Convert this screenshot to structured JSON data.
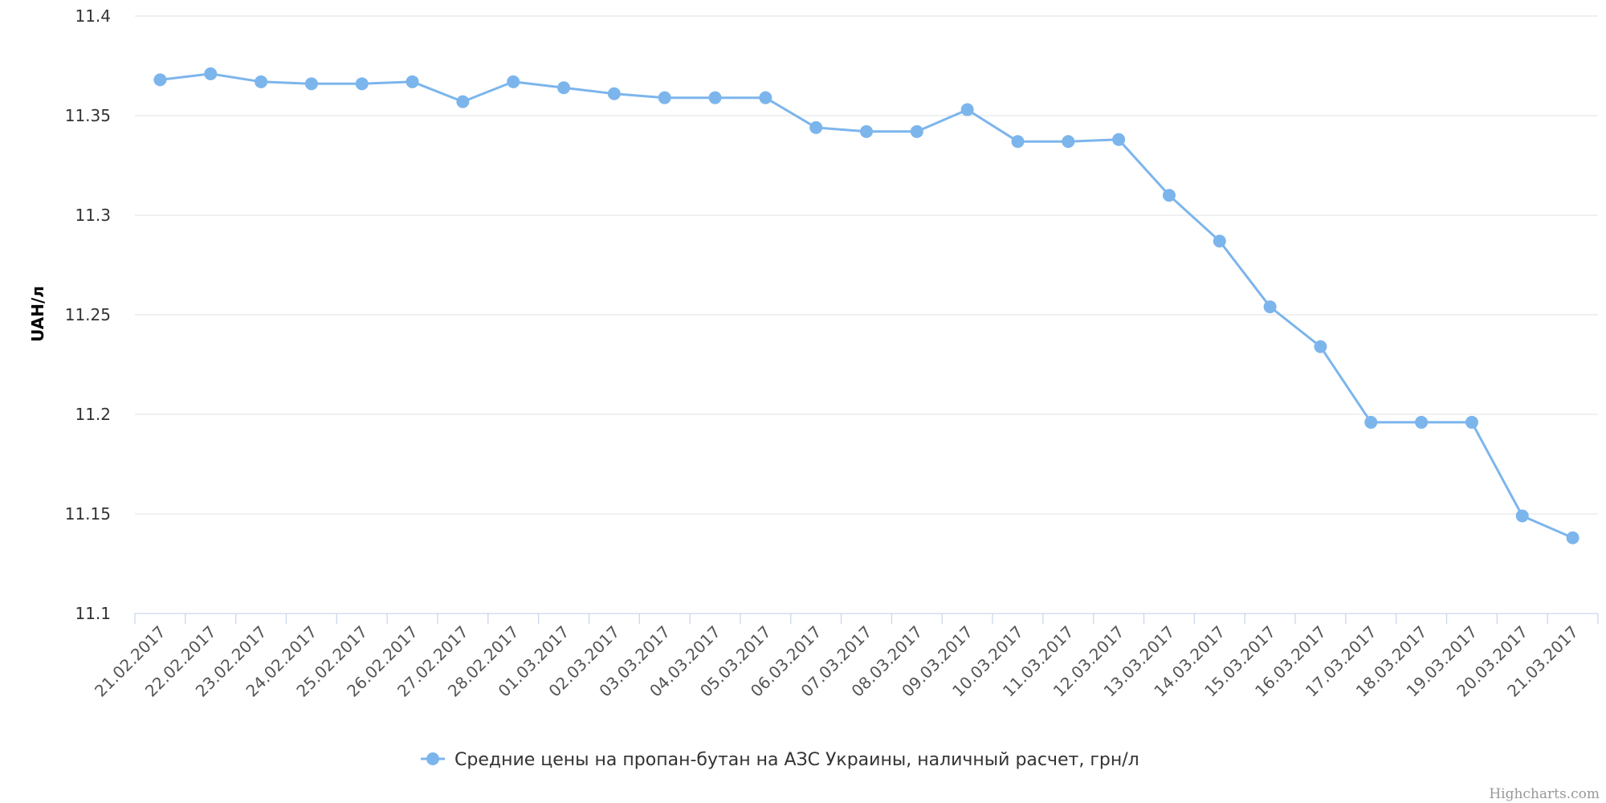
{
  "chart_data": {
    "type": "line",
    "title": "",
    "xlabel": "",
    "ylabel": "UAH/л",
    "ylim": [
      11.1,
      11.4
    ],
    "y_ticks": [
      "11.1",
      "11.15",
      "11.2",
      "11.25",
      "11.3",
      "11.35",
      "11.4"
    ],
    "y_tick_values": [
      11.1,
      11.15,
      11.2,
      11.25,
      11.3,
      11.35,
      11.4
    ],
    "grid": true,
    "legend_position": "bottom-center",
    "categories": [
      "21.02.2017",
      "22.02.2017",
      "23.02.2017",
      "24.02.2017",
      "25.02.2017",
      "26.02.2017",
      "27.02.2017",
      "28.02.2017",
      "01.03.2017",
      "02.03.2017",
      "03.03.2017",
      "04.03.2017",
      "05.03.2017",
      "06.03.2017",
      "07.03.2017",
      "08.03.2017",
      "09.03.2017",
      "10.03.2017",
      "11.03.2017",
      "12.03.2017",
      "13.03.2017",
      "14.03.2017",
      "15.03.2017",
      "16.03.2017",
      "17.03.2017",
      "18.03.2017",
      "19.03.2017",
      "20.03.2017",
      "21.03.2017"
    ],
    "series": [
      {
        "name": "Средние цены на пропан-бутан на АЗС Украины, наличный расчет, грн/л",
        "color": "#7cb5ec",
        "values": [
          11.368,
          11.371,
          11.367,
          11.366,
          11.366,
          11.367,
          11.357,
          11.367,
          11.364,
          11.361,
          11.359,
          11.359,
          11.359,
          11.344,
          11.342,
          11.342,
          11.353,
          11.337,
          11.337,
          11.338,
          11.31,
          11.287,
          11.254,
          11.234,
          11.196,
          11.196,
          11.196,
          11.149,
          11.138
        ]
      }
    ]
  },
  "credits": "Highcharts.com"
}
